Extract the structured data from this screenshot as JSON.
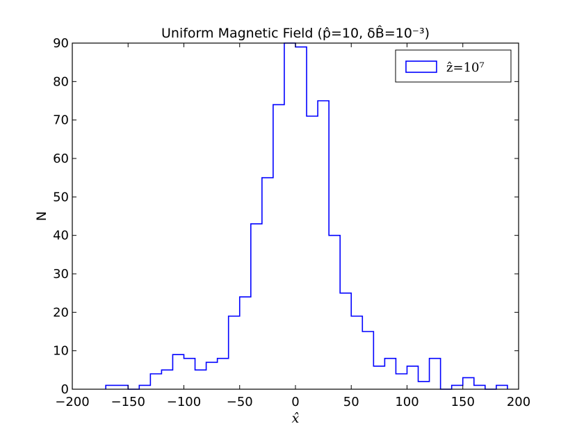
{
  "chart_data": {
    "type": "histogram",
    "title": "Uniform Magnetic Field (p̂=10, δB̂=10⁻³)",
    "xlabel": "x̂",
    "ylabel": "N",
    "xlim": [
      -200,
      200
    ],
    "ylim": [
      0,
      90
    ],
    "x_ticks": [
      "−200",
      "−150",
      "−100",
      "−50",
      "0",
      "50",
      "100",
      "150",
      "200"
    ],
    "y_ticks": [
      "0",
      "10",
      "20",
      "30",
      "40",
      "50",
      "60",
      "70",
      "80",
      "90"
    ],
    "legend_position": "top-right",
    "series": [
      {
        "name": "ẑ=10⁷",
        "color": "#0000ff",
        "bin_width": 10,
        "bin_edges_start": -170,
        "counts": [
          1,
          1,
          0,
          1,
          4,
          5,
          9,
          8,
          5,
          7,
          8,
          19,
          24,
          43,
          55,
          74,
          90,
          89,
          71,
          75,
          40,
          25,
          19,
          15,
          6,
          8,
          4,
          6,
          2,
          8,
          0,
          1,
          3,
          1,
          0,
          1
        ]
      }
    ]
  }
}
